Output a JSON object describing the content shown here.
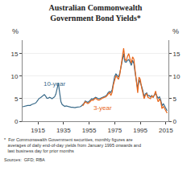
{
  "chart_data": {
    "type": "line",
    "title": "Australian Commonwealth\nGovernment Bond Yields*",
    "ylabel": "%",
    "y2label": "%",
    "notes": [
      "*  For Commonwealth Government securities, monthly figures are\n   averages of daily end-of-day yields from January 1995 onwards and\n   last business day for prior months",
      "Sources:  GFD; RBA"
    ],
    "x": [
      1903,
      1904,
      1905,
      1906,
      1907,
      1908,
      1909,
      1910,
      1911,
      1912,
      1913,
      1914,
      1915,
      1916,
      1917,
      1918,
      1919,
      1920,
      1921,
      1922,
      1923,
      1924,
      1925,
      1926,
      1927,
      1928,
      1929,
      1930,
      1931,
      1932,
      1933,
      1934,
      1935,
      1936,
      1937,
      1938,
      1939,
      1940,
      1941,
      1942,
      1943,
      1944,
      1945,
      1946,
      1947,
      1948,
      1949,
      1950,
      1951,
      1952,
      1953,
      1954,
      1955,
      1956,
      1957,
      1958,
      1959,
      1960,
      1961,
      1962,
      1963,
      1964,
      1965,
      1966,
      1967,
      1968,
      1969,
      1970,
      1971,
      1972,
      1973,
      1974,
      1975,
      1976,
      1977,
      1978,
      1979,
      1980,
      1981,
      1982,
      1983,
      1984,
      1985,
      1986,
      1987,
      1988,
      1989,
      1990,
      1991,
      1992,
      1993,
      1994,
      1995,
      1996,
      1997,
      1998,
      1999,
      2000,
      2001,
      2002,
      2003,
      2004,
      2005,
      2006,
      2007,
      2008,
      2009,
      2010,
      2011,
      2012,
      2013,
      2014,
      2015,
      2016
    ],
    "series": [
      {
        "name": "10-year",
        "color": "#3a6b8a",
        "values": [
          3.2,
          3.3,
          3.4,
          3.5,
          3.5,
          3.5,
          3.5,
          3.7,
          3.8,
          3.9,
          4.0,
          4.3,
          4.8,
          5.1,
          5.2,
          5.4,
          5.6,
          5.9,
          5.6,
          5.1,
          5.1,
          5.3,
          5.2,
          5.0,
          5.2,
          5.4,
          6.0,
          7.2,
          8.5,
          6.3,
          4.3,
          3.7,
          3.5,
          3.3,
          3.4,
          3.3,
          3.2,
          3.2,
          3.1,
          3.1,
          3.0,
          3.0,
          3.1,
          3.1,
          3.1,
          3.2,
          3.4,
          3.7,
          4.0,
          4.5,
          4.3,
          4.2,
          4.4,
          4.8,
          5.0,
          4.9,
          5.1,
          5.3,
          5.2,
          5.0,
          5.0,
          5.1,
          5.3,
          5.4,
          5.5,
          5.6,
          5.9,
          6.4,
          6.6,
          6.4,
          7.0,
          8.6,
          10.0,
          10.5,
          10.2,
          9.8,
          10.7,
          12.0,
          13.5,
          15.0,
          13.2,
          13.1,
          13.5,
          13.7,
          13.1,
          12.4,
          13.5,
          12.8,
          10.7,
          8.7,
          7.2,
          9.3,
          8.7,
          7.8,
          6.8,
          5.4,
          6.1,
          6.3,
          5.6,
          5.7,
          5.4,
          5.7,
          5.3,
          5.9,
          6.2,
          5.6,
          5.1,
          5.4,
          4.7,
          3.4,
          3.9,
          3.4,
          2.9,
          2.3
        ]
      },
      {
        "name": "3-year",
        "color": "#e8661a",
        "values": [
          null,
          null,
          null,
          null,
          null,
          null,
          null,
          null,
          null,
          null,
          null,
          null,
          null,
          null,
          null,
          null,
          null,
          null,
          null,
          null,
          null,
          null,
          null,
          null,
          null,
          null,
          null,
          null,
          null,
          null,
          null,
          null,
          null,
          null,
          null,
          null,
          null,
          null,
          null,
          null,
          null,
          null,
          null,
          null,
          null,
          null,
          null,
          3.4,
          3.8,
          4.3,
          4.1,
          3.9,
          4.1,
          4.5,
          4.7,
          4.6,
          4.9,
          5.1,
          4.9,
          4.7,
          4.7,
          4.9,
          5.1,
          5.2,
          5.3,
          5.4,
          5.7,
          6.1,
          6.4,
          5.7,
          6.4,
          8.1,
          9.4,
          10.1,
          9.7,
          9.3,
          10.4,
          12.4,
          14.4,
          16.2,
          13.8,
          13.4,
          14.4,
          15.0,
          13.8,
          12.9,
          14.3,
          13.8,
          11.2,
          8.2,
          6.3,
          9.8,
          9.3,
          7.5,
          6.3,
          5.0,
          5.8,
          6.1,
          5.3,
          5.2,
          5.0,
          5.6,
          5.3,
          5.9,
          6.7,
          5.2,
          4.3,
          5.0,
          4.3,
          2.8,
          3.3,
          2.8,
          2.3,
          1.8
        ]
      }
    ],
    "annotations": [
      {
        "text": "10-year",
        "x": 1918,
        "y": 7.2
      },
      {
        "text": "3-year",
        "x": 1957,
        "y": 1.8
      }
    ],
    "xlim": [
      1903,
      2017
    ],
    "xticks": [
      1915,
      1935,
      1955,
      1975,
      1995,
      2015
    ],
    "ylim": [
      0,
      18
    ],
    "yticks": [
      0,
      5,
      10,
      15
    ],
    "y2lim": [
      0,
      18
    ],
    "y2ticks": [
      0,
      5,
      10,
      15
    ],
    "grid": "y"
  }
}
